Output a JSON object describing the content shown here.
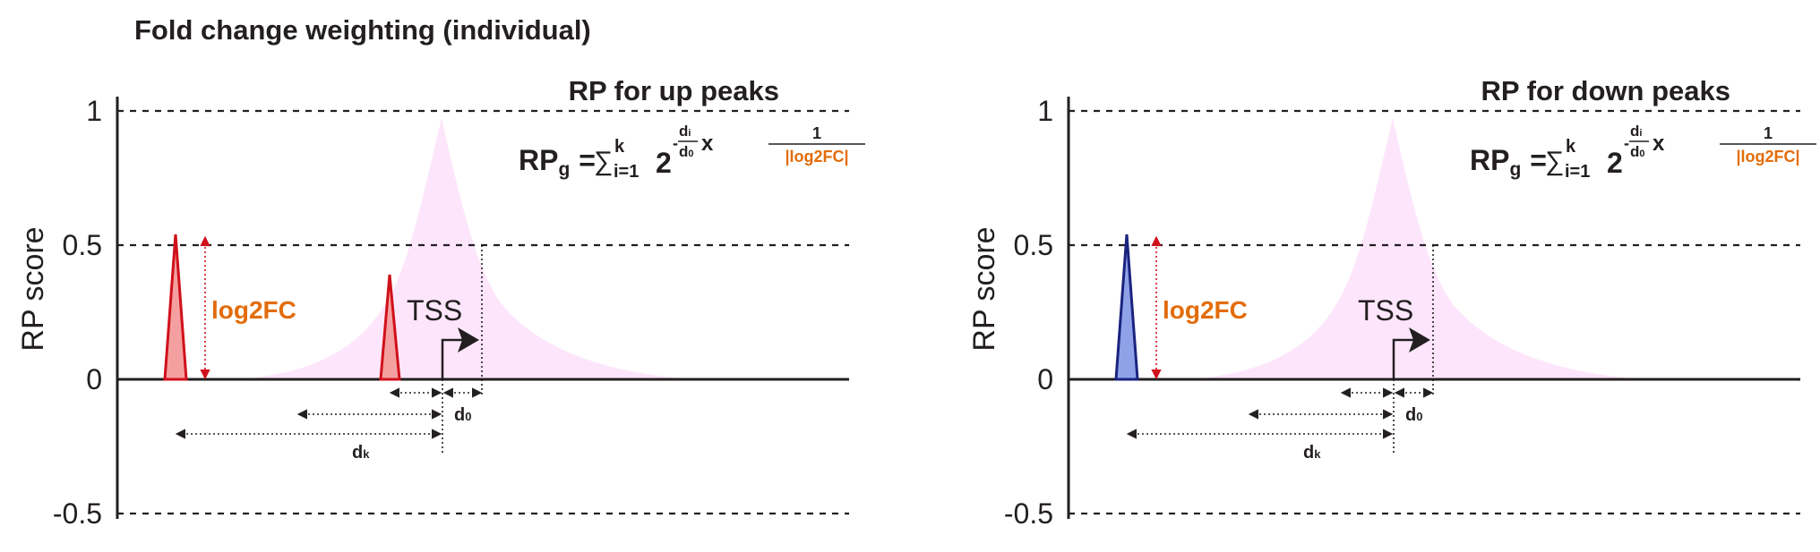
{
  "title": "Fold change weighting (individual)",
  "colors": {
    "axis": "#231f20",
    "decay_fill": "#fde6fb",
    "up_peak_fill": "#f4a0a0",
    "up_peak_stroke": "#d0101a",
    "down_peak_fill": "#8fa2e8",
    "down_peak_stroke": "#1a237e",
    "fc_arrow": "#d0101a",
    "log2fc_text": "#e36c0a"
  },
  "panels": [
    {
      "id": "up",
      "panel_title": "RP for up peaks",
      "ylabel": "RP score",
      "yticks": [
        "1",
        "0.5",
        "0",
        "-0.5"
      ],
      "peak_type": "up",
      "fc_label": "log2FC",
      "tss_label": "TSS",
      "d0_label": "d0",
      "dk_label": "dk",
      "formula": {
        "lhs": "RP",
        "lhs_sub": "g",
        "equals": "=",
        "sum": "∑",
        "sum_upper": "k",
        "sum_lower": "i=1",
        "base": "2",
        "exp_sign": "-",
        "exp_num": "di",
        "exp_den": "d0",
        "times": "x",
        "frac_num": "1",
        "frac_den": "|log2FC|"
      }
    },
    {
      "id": "down",
      "panel_title": "RP for down peaks",
      "ylabel": "RP score",
      "yticks": [
        "1",
        "0.5",
        "0",
        "-0.5"
      ],
      "peak_type": "down",
      "fc_label": "log2FC",
      "tss_label": "TSS",
      "d0_label": "d0",
      "dk_label": "dk",
      "formula": {
        "lhs": "RP",
        "lhs_sub": "g",
        "equals": "=",
        "sum": "∑",
        "sum_upper": "k",
        "sum_lower": "i=1",
        "base": "2",
        "exp_sign": "-",
        "exp_num": "di",
        "exp_den": "d0",
        "times": "x",
        "frac_num": "1",
        "frac_den": "|log2FC|"
      }
    }
  ]
}
